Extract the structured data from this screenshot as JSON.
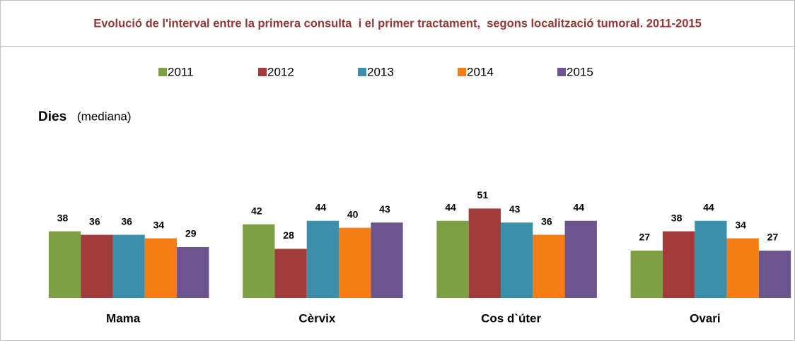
{
  "chart_data": {
    "type": "bar",
    "title": "Evolució de l'interval entre la primera consulta  i el primer tractament,  segons localització tumoral. 2011-2015",
    "ylabel": "Dies",
    "ylabel_note": "(mediana)",
    "categories": [
      "Mama",
      "Cèrvix",
      "Cos d`úter",
      "Ovari"
    ],
    "series": [
      {
        "name": "2011",
        "color": "#7f9f45",
        "values": [
          38,
          42,
          44,
          27
        ]
      },
      {
        "name": "2012",
        "color": "#a03c3a",
        "values": [
          36,
          28,
          51,
          38
        ]
      },
      {
        "name": "2013",
        "color": "#3c8fab",
        "values": [
          36,
          44,
          43,
          44
        ]
      },
      {
        "name": "2014",
        "color": "#f57d14",
        "values": [
          34,
          40,
          36,
          34
        ]
      },
      {
        "name": "2015",
        "color": "#6c548c",
        "values": [
          29,
          43,
          44,
          27
        ]
      }
    ],
    "ylim": [
      0,
      60
    ],
    "legend": "top"
  }
}
